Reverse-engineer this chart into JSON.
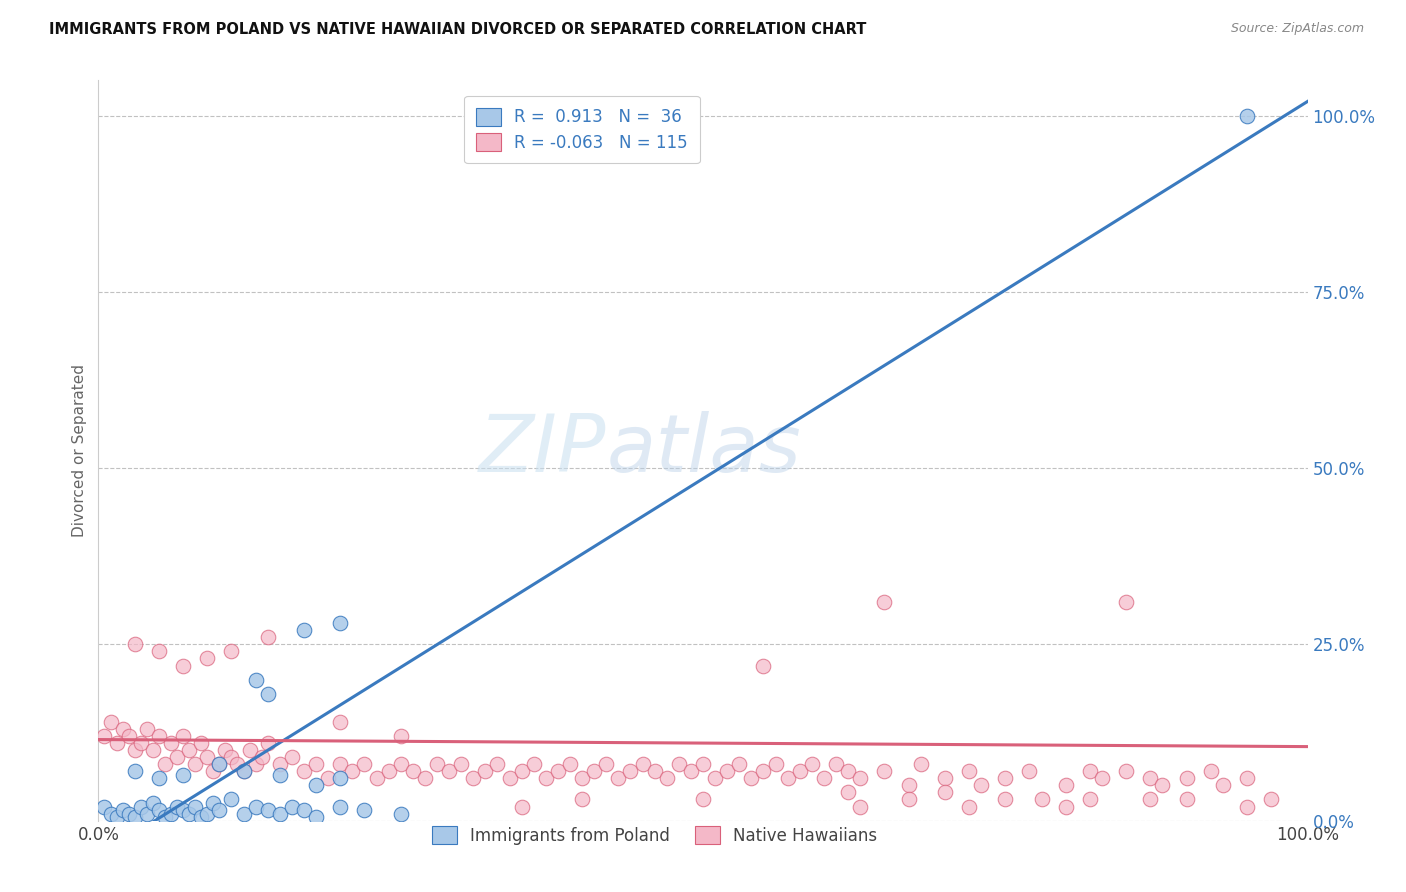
{
  "title": "IMMIGRANTS FROM POLAND VS NATIVE HAWAIIAN DIVORCED OR SEPARATED CORRELATION CHART",
  "source": "Source: ZipAtlas.com",
  "ylabel": "Divorced or Separated",
  "ytick_labels": [
    "0.0%",
    "25.0%",
    "50.0%",
    "75.0%",
    "100.0%"
  ],
  "ytick_values": [
    0,
    25,
    50,
    75,
    100
  ],
  "xtick_labels": [
    "0.0%",
    "100.0%"
  ],
  "xtick_values": [
    0,
    100
  ],
  "xlim": [
    0,
    100
  ],
  "ylim": [
    0,
    105
  ],
  "blue_color": "#a8c8e8",
  "pink_color": "#f4b8c8",
  "line_blue": "#3a7abf",
  "line_pink": "#d9607a",
  "watermark_zip": "ZIP",
  "watermark_atlas": "atlas",
  "grid_color": "#bbbbbb",
  "background_color": "#ffffff",
  "blue_line_x": [
    0,
    100
  ],
  "blue_line_y": [
    -5,
    102
  ],
  "pink_line_x": [
    0,
    100
  ],
  "pink_line_y": [
    11.5,
    10.5
  ],
  "blue_scatter": [
    [
      0.5,
      2
    ],
    [
      1.0,
      1
    ],
    [
      1.5,
      0.5
    ],
    [
      2.0,
      1.5
    ],
    [
      2.5,
      1
    ],
    [
      3.0,
      0.5
    ],
    [
      3.5,
      2
    ],
    [
      4.0,
      1
    ],
    [
      4.5,
      2.5
    ],
    [
      5.0,
      1.5
    ],
    [
      5.5,
      0.5
    ],
    [
      6.0,
      1
    ],
    [
      6.5,
      2
    ],
    [
      7.0,
      1.5
    ],
    [
      7.5,
      1
    ],
    [
      8.0,
      2
    ],
    [
      8.5,
      0.5
    ],
    [
      9.0,
      1
    ],
    [
      9.5,
      2.5
    ],
    [
      10.0,
      1.5
    ],
    [
      11.0,
      3
    ],
    [
      12.0,
      1
    ],
    [
      13.0,
      2
    ],
    [
      14.0,
      1.5
    ],
    [
      15.0,
      1
    ],
    [
      16.0,
      2
    ],
    [
      17.0,
      1.5
    ],
    [
      18.0,
      0.5
    ],
    [
      20.0,
      2
    ],
    [
      22.0,
      1.5
    ],
    [
      25.0,
      1
    ],
    [
      3.0,
      7
    ],
    [
      5.0,
      6
    ],
    [
      7.0,
      6.5
    ],
    [
      10.0,
      8
    ],
    [
      12.0,
      7
    ],
    [
      15.0,
      6.5
    ],
    [
      18.0,
      5
    ],
    [
      20.0,
      6
    ],
    [
      13.0,
      20
    ],
    [
      14.0,
      18
    ],
    [
      17.0,
      27
    ],
    [
      20.0,
      28
    ],
    [
      95.0,
      100
    ]
  ],
  "pink_scatter": [
    [
      0.5,
      12
    ],
    [
      1.0,
      14
    ],
    [
      1.5,
      11
    ],
    [
      2.0,
      13
    ],
    [
      2.5,
      12
    ],
    [
      3.0,
      10
    ],
    [
      3.5,
      11
    ],
    [
      4.0,
      13
    ],
    [
      4.5,
      10
    ],
    [
      5.0,
      12
    ],
    [
      5.5,
      8
    ],
    [
      6.0,
      11
    ],
    [
      6.5,
      9
    ],
    [
      7.0,
      12
    ],
    [
      7.5,
      10
    ],
    [
      8.0,
      8
    ],
    [
      8.5,
      11
    ],
    [
      9.0,
      9
    ],
    [
      9.5,
      7
    ],
    [
      10.0,
      8
    ],
    [
      10.5,
      10
    ],
    [
      11.0,
      9
    ],
    [
      11.5,
      8
    ],
    [
      12.0,
      7
    ],
    [
      12.5,
      10
    ],
    [
      13.0,
      8
    ],
    [
      13.5,
      9
    ],
    [
      14.0,
      11
    ],
    [
      15.0,
      8
    ],
    [
      16.0,
      9
    ],
    [
      17.0,
      7
    ],
    [
      18.0,
      8
    ],
    [
      19.0,
      6
    ],
    [
      20.0,
      8
    ],
    [
      21.0,
      7
    ],
    [
      22.0,
      8
    ],
    [
      23.0,
      6
    ],
    [
      24.0,
      7
    ],
    [
      25.0,
      8
    ],
    [
      26.0,
      7
    ],
    [
      27.0,
      6
    ],
    [
      28.0,
      8
    ],
    [
      29.0,
      7
    ],
    [
      30.0,
      8
    ],
    [
      31.0,
      6
    ],
    [
      32.0,
      7
    ],
    [
      33.0,
      8
    ],
    [
      34.0,
      6
    ],
    [
      35.0,
      7
    ],
    [
      36.0,
      8
    ],
    [
      37.0,
      6
    ],
    [
      38.0,
      7
    ],
    [
      39.0,
      8
    ],
    [
      40.0,
      6
    ],
    [
      41.0,
      7
    ],
    [
      42.0,
      8
    ],
    [
      43.0,
      6
    ],
    [
      44.0,
      7
    ],
    [
      45.0,
      8
    ],
    [
      46.0,
      7
    ],
    [
      47.0,
      6
    ],
    [
      48.0,
      8
    ],
    [
      49.0,
      7
    ],
    [
      50.0,
      8
    ],
    [
      51.0,
      6
    ],
    [
      52.0,
      7
    ],
    [
      53.0,
      8
    ],
    [
      54.0,
      6
    ],
    [
      55.0,
      7
    ],
    [
      56.0,
      8
    ],
    [
      57.0,
      6
    ],
    [
      58.0,
      7
    ],
    [
      59.0,
      8
    ],
    [
      60.0,
      6
    ],
    [
      61.0,
      8
    ],
    [
      62.0,
      7
    ],
    [
      63.0,
      6
    ],
    [
      65.0,
      7
    ],
    [
      67.0,
      5
    ],
    [
      68.0,
      8
    ],
    [
      70.0,
      6
    ],
    [
      72.0,
      7
    ],
    [
      73.0,
      5
    ],
    [
      75.0,
      6
    ],
    [
      77.0,
      7
    ],
    [
      80.0,
      5
    ],
    [
      82.0,
      7
    ],
    [
      83.0,
      6
    ],
    [
      85.0,
      7
    ],
    [
      87.0,
      6
    ],
    [
      88.0,
      5
    ],
    [
      90.0,
      6
    ],
    [
      92.0,
      7
    ],
    [
      93.0,
      5
    ],
    [
      95.0,
      6
    ],
    [
      97.0,
      3
    ],
    [
      3.0,
      25
    ],
    [
      5.0,
      24
    ],
    [
      7.0,
      22
    ],
    [
      9.0,
      23
    ],
    [
      11.0,
      24
    ],
    [
      14.0,
      26
    ],
    [
      20.0,
      14
    ],
    [
      25.0,
      12
    ],
    [
      35.0,
      2
    ],
    [
      40.0,
      3
    ],
    [
      50.0,
      3
    ],
    [
      55.0,
      22
    ],
    [
      62.0,
      4
    ],
    [
      63.0,
      2
    ],
    [
      65.0,
      31
    ],
    [
      67.0,
      3
    ],
    [
      70.0,
      4
    ],
    [
      72.0,
      2
    ],
    [
      75.0,
      3
    ],
    [
      78.0,
      3
    ],
    [
      80.0,
      2
    ],
    [
      82.0,
      3
    ],
    [
      85.0,
      31
    ],
    [
      87.0,
      3
    ],
    [
      90.0,
      3
    ],
    [
      95.0,
      2
    ]
  ]
}
